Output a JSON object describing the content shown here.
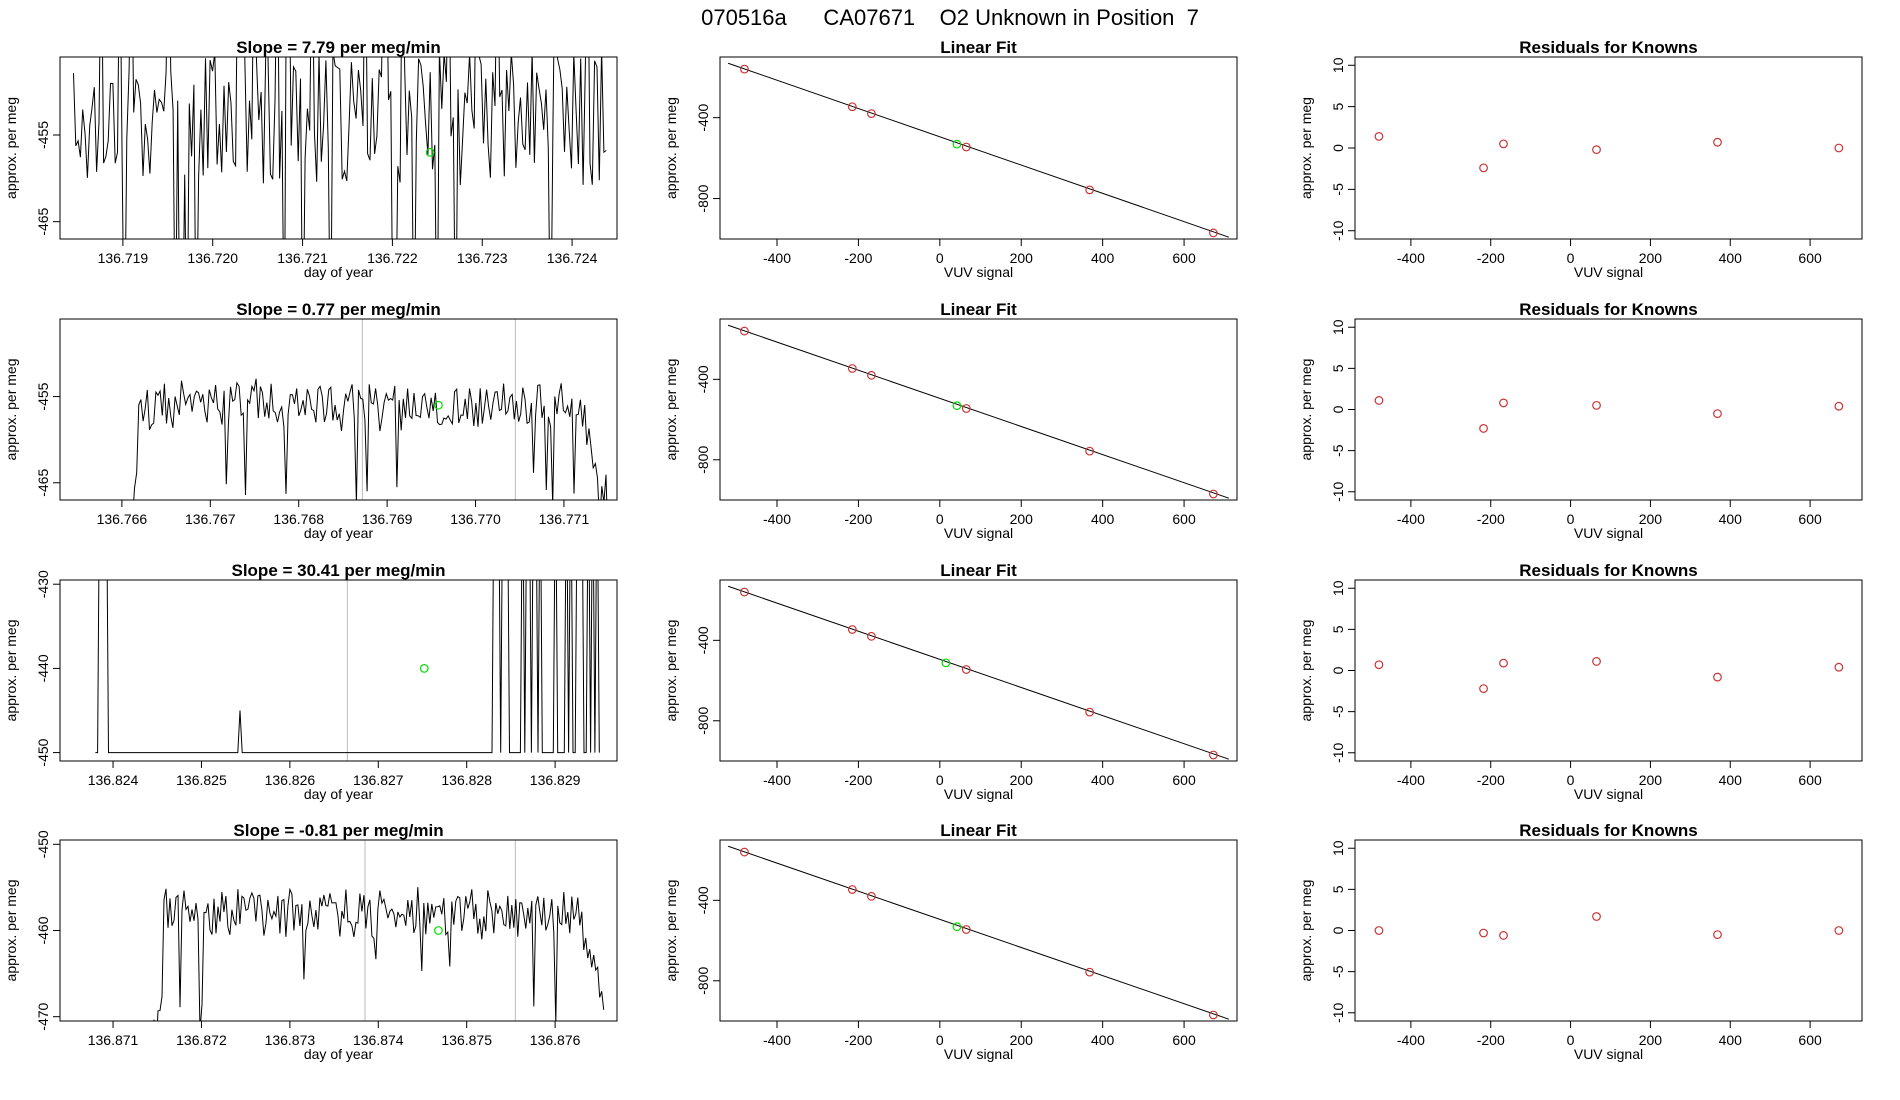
{
  "figure_title": "070516a      CA07671    O2 Unknown in Position  7",
  "chart_data": [
    {
      "type": "line",
      "row": 1,
      "title": "Slope =  7.79  per meg/min",
      "xlabel": "day of year",
      "ylabel": "approx. per meg",
      "xlim": [
        136.7183,
        136.7245
      ],
      "ylim": [
        -467,
        -446
      ],
      "xticks": [
        136.719,
        136.72,
        136.721,
        136.722,
        136.723,
        136.724
      ],
      "xtick_labels": [
        "136.719",
        "136.720",
        "136.721",
        "136.722",
        "136.723",
        "136.724"
      ],
      "yticks": [
        -455,
        -465
      ],
      "ytick_labels": [
        "-455",
        "-465"
      ],
      "line": {
        "x_start": 136.71845,
        "x_end": 136.72438,
        "pattern": "spiky",
        "center": -453,
        "amp": 8
      },
      "vlines": [],
      "marker": {
        "x": 136.72242,
        "y": -457,
        "color": "#00dd00"
      }
    },
    {
      "type": "scatter",
      "row": 1,
      "title": "Linear Fit",
      "xlabel": "VUV signal",
      "ylabel": "approx. per meg",
      "xlim": [
        -540,
        730
      ],
      "ylim": [
        -1000,
        -100
      ],
      "xticks": [
        -400,
        -200,
        0,
        200,
        400,
        600
      ],
      "xtick_labels": [
        "-400",
        "-200",
        "0",
        "200",
        "400",
        "600"
      ],
      "yticks": [
        -400,
        -800
      ],
      "ytick_labels": [
        "-400",
        "-800"
      ],
      "fit": {
        "x1": -520,
        "y1": -131,
        "x2": 710,
        "y2": -991
      },
      "points": [
        {
          "x": -480,
          "y": -160
        },
        {
          "x": -215,
          "y": -346
        },
        {
          "x": -168,
          "y": -380
        },
        {
          "x": 65,
          "y": -545
        },
        {
          "x": 368,
          "y": -757
        },
        {
          "x": 672,
          "y": -970
        }
      ],
      "unknown": {
        "x": 42,
        "y": -531
      },
      "point_color": "#cc3333",
      "unknown_color": "#00dd00"
    },
    {
      "type": "scatter",
      "row": 1,
      "title": "Residuals for Knowns",
      "xlabel": "VUV signal",
      "ylabel": "approx. per meg",
      "xlim": [
        -540,
        730
      ],
      "ylim": [
        -11,
        11
      ],
      "xticks": [
        -400,
        -200,
        0,
        200,
        400,
        600
      ],
      "xtick_labels": [
        "-400",
        "-200",
        "0",
        "200",
        "400",
        "600"
      ],
      "yticks": [
        10,
        5,
        0,
        -5,
        -10
      ],
      "ytick_labels": [
        "10",
        "5",
        "0",
        "-5",
        "-10"
      ],
      "points": [
        {
          "x": -480,
          "y": 1.4
        },
        {
          "x": -218,
          "y": -2.4
        },
        {
          "x": -168,
          "y": 0.5
        },
        {
          "x": 65,
          "y": -0.2
        },
        {
          "x": 368,
          "y": 0.7
        },
        {
          "x": 672,
          "y": 0
        }
      ],
      "point_color": "#cc3333"
    },
    {
      "type": "line",
      "row": 2,
      "title": "Slope =  0.77  per meg/min",
      "xlabel": "day of year",
      "ylabel": "approx. per meg",
      "xlim": [
        136.7653,
        136.7716
      ],
      "ylim": [
        -467,
        -446
      ],
      "xticks": [
        136.766,
        136.767,
        136.768,
        136.769,
        136.77,
        136.771
      ],
      "xtick_labels": [
        "136.766",
        "136.767",
        "136.768",
        "136.769",
        "136.770",
        "136.771"
      ],
      "yticks": [
        -455,
        -465
      ],
      "ytick_labels": [
        "-455",
        "-465"
      ],
      "line": {
        "x_start": 136.76595,
        "x_end": 136.7715,
        "pattern": "noisy",
        "center": -456,
        "amp": 2.5
      },
      "vlines": [
        136.76872,
        136.77045
      ],
      "marker": {
        "x": 136.76958,
        "y": -456,
        "color": "#00dd00"
      }
    },
    {
      "type": "scatter",
      "row": 2,
      "title": "Linear Fit",
      "xlabel": "VUV signal",
      "ylabel": "approx. per meg",
      "xlim": [
        -540,
        730
      ],
      "ylim": [
        -1000,
        -100
      ],
      "xticks": [
        -400,
        -200,
        0,
        200,
        400,
        600
      ],
      "xtick_labels": [
        "-400",
        "-200",
        "0",
        "200",
        "400",
        "600"
      ],
      "yticks": [
        -400,
        -800
      ],
      "ytick_labels": [
        "-400",
        "-800"
      ],
      "fit": {
        "x1": -520,
        "y1": -131,
        "x2": 710,
        "y2": -991
      },
      "points": [
        {
          "x": -480,
          "y": -160
        },
        {
          "x": -215,
          "y": -346
        },
        {
          "x": -168,
          "y": -380
        },
        {
          "x": 65,
          "y": -545
        },
        {
          "x": 368,
          "y": -757
        },
        {
          "x": 672,
          "y": -970
        }
      ],
      "unknown": {
        "x": 42,
        "y": -531
      },
      "point_color": "#cc3333",
      "unknown_color": "#00dd00"
    },
    {
      "type": "scatter",
      "row": 2,
      "title": "Residuals for Knowns",
      "xlabel": "VUV signal",
      "ylabel": "approx. per meg",
      "xlim": [
        -540,
        730
      ],
      "ylim": [
        -11,
        11
      ],
      "xticks": [
        -400,
        -200,
        0,
        200,
        400,
        600
      ],
      "xtick_labels": [
        "-400",
        "-200",
        "0",
        "200",
        "400",
        "600"
      ],
      "yticks": [
        10,
        5,
        0,
        -5,
        -10
      ],
      "ytick_labels": [
        "10",
        "5",
        "0",
        "-5",
        "-10"
      ],
      "points": [
        {
          "x": -480,
          "y": 1.1
        },
        {
          "x": -218,
          "y": -2.3
        },
        {
          "x": -168,
          "y": 0.8
        },
        {
          "x": 65,
          "y": 0.5
        },
        {
          "x": 368,
          "y": -0.5
        },
        {
          "x": 672,
          "y": 0.4
        }
      ],
      "point_color": "#cc3333"
    },
    {
      "type": "line",
      "row": 3,
      "title": "Slope =  30.41  per meg/min",
      "xlabel": "day of year",
      "ylabel": "approx. per meg",
      "xlim": [
        136.8234,
        136.8297
      ],
      "ylim": [
        -451,
        -429.5
      ],
      "xticks": [
        136.824,
        136.825,
        136.826,
        136.827,
        136.828,
        136.829
      ],
      "xtick_labels": [
        "136.824",
        "136.825",
        "136.826",
        "136.827",
        "136.828",
        "136.829"
      ],
      "yticks": [
        -430,
        -440,
        -450
      ],
      "ytick_labels": [
        "-430",
        "-440",
        "-450"
      ],
      "line": {
        "x_start": 136.8238,
        "x_end": 136.8295,
        "pattern": "sparse",
        "center": -450,
        "amp": 0
      },
      "vlines": [
        136.82665
      ],
      "marker": {
        "x": 136.82752,
        "y": -440,
        "color": "#00dd00"
      }
    },
    {
      "type": "scatter",
      "row": 3,
      "title": "Linear Fit",
      "xlabel": "VUV signal",
      "ylabel": "approx. per meg",
      "xlim": [
        -540,
        730
      ],
      "ylim": [
        -1000,
        -100
      ],
      "xticks": [
        -400,
        -200,
        0,
        200,
        400,
        600
      ],
      "xtick_labels": [
        "-400",
        "-200",
        "0",
        "200",
        "400",
        "600"
      ],
      "yticks": [
        -400,
        -800
      ],
      "ytick_labels": [
        "-400",
        "-800"
      ],
      "fit": {
        "x1": -520,
        "y1": -131,
        "x2": 710,
        "y2": -991
      },
      "points": [
        {
          "x": -480,
          "y": -160
        },
        {
          "x": -215,
          "y": -346
        },
        {
          "x": -168,
          "y": -380
        },
        {
          "x": 65,
          "y": -545
        },
        {
          "x": 368,
          "y": -757
        },
        {
          "x": 672,
          "y": -970
        }
      ],
      "unknown": {
        "x": 15,
        "y": -512
      },
      "point_color": "#cc3333",
      "unknown_color": "#00dd00"
    },
    {
      "type": "scatter",
      "row": 3,
      "title": "Residuals for Knowns",
      "xlabel": "VUV signal",
      "ylabel": "approx. per meg",
      "xlim": [
        -540,
        730
      ],
      "ylim": [
        -11,
        11
      ],
      "xticks": [
        -400,
        -200,
        0,
        200,
        400,
        600
      ],
      "xtick_labels": [
        "-400",
        "-200",
        "0",
        "200",
        "400",
        "600"
      ],
      "yticks": [
        10,
        5,
        0,
        -5,
        -10
      ],
      "ytick_labels": [
        "10",
        "5",
        "0",
        "-5",
        "-10"
      ],
      "points": [
        {
          "x": -480,
          "y": 0.7
        },
        {
          "x": -218,
          "y": -2.2
        },
        {
          "x": -168,
          "y": 0.9
        },
        {
          "x": 65,
          "y": 1.1
        },
        {
          "x": 368,
          "y": -0.8
        },
        {
          "x": 672,
          "y": 0.4
        }
      ],
      "point_color": "#cc3333"
    },
    {
      "type": "line",
      "row": 4,
      "title": "Slope =  -0.81  per meg/min",
      "xlabel": "day of year",
      "ylabel": "approx. per meg",
      "xlim": [
        136.8704,
        136.8767
      ],
      "ylim": [
        -470.5,
        -449.5
      ],
      "xticks": [
        136.871,
        136.872,
        136.873,
        136.874,
        136.875,
        136.876
      ],
      "xtick_labels": [
        "136.871",
        "136.872",
        "136.873",
        "136.874",
        "136.875",
        "136.876"
      ],
      "yticks": [
        -450,
        -460,
        -470
      ],
      "ytick_labels": [
        "-450",
        "-460",
        "-470"
      ],
      "line": {
        "x_start": 136.87135,
        "x_end": 136.87655,
        "pattern": "noisy",
        "center": -458,
        "amp": 2.5
      },
      "vlines": [
        136.87385,
        136.87555
      ],
      "marker": {
        "x": 136.87468,
        "y": -460,
        "color": "#00dd00"
      }
    },
    {
      "type": "scatter",
      "row": 4,
      "title": "Linear Fit",
      "xlabel": "VUV signal",
      "ylabel": "approx. per meg",
      "xlim": [
        -540,
        730
      ],
      "ylim": [
        -1000,
        -100
      ],
      "xticks": [
        -400,
        -200,
        0,
        200,
        400,
        600
      ],
      "xtick_labels": [
        "-400",
        "-200",
        "0",
        "200",
        "400",
        "600"
      ],
      "yticks": [
        -400,
        -800
      ],
      "ytick_labels": [
        "-400",
        "-800"
      ],
      "fit": {
        "x1": -520,
        "y1": -131,
        "x2": 710,
        "y2": -991
      },
      "points": [
        {
          "x": -480,
          "y": -160
        },
        {
          "x": -215,
          "y": -346
        },
        {
          "x": -168,
          "y": -380
        },
        {
          "x": 65,
          "y": -545
        },
        {
          "x": 368,
          "y": -757
        },
        {
          "x": 672,
          "y": -970
        }
      ],
      "unknown": {
        "x": 42,
        "y": -531
      },
      "point_color": "#cc3333",
      "unknown_color": "#00dd00"
    },
    {
      "type": "scatter",
      "row": 4,
      "title": "Residuals for Knowns",
      "xlabel": "VUV signal",
      "ylabel": "approx. per meg",
      "xlim": [
        -540,
        730
      ],
      "ylim": [
        -11,
        11
      ],
      "xticks": [
        -400,
        -200,
        0,
        200,
        400,
        600
      ],
      "xtick_labels": [
        "-400",
        "-200",
        "0",
        "200",
        "400",
        "600"
      ],
      "yticks": [
        10,
        5,
        0,
        -5,
        -10
      ],
      "ytick_labels": [
        "10",
        "5",
        "0",
        "-5",
        "-10"
      ],
      "points": [
        {
          "x": -480,
          "y": 0
        },
        {
          "x": -218,
          "y": -0.3
        },
        {
          "x": -168,
          "y": -0.6
        },
        {
          "x": 65,
          "y": 1.7
        },
        {
          "x": 368,
          "y": -0.5
        },
        {
          "x": 672,
          "y": 0
        }
      ],
      "point_color": "#cc3333"
    }
  ]
}
